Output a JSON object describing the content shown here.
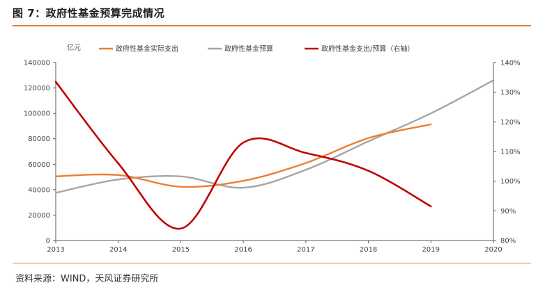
{
  "header": {
    "title": "图 7：政府性基金预算完成情况"
  },
  "footer": {
    "source": "资料来源：WIND，天风证券研究所"
  },
  "colors": {
    "accent": "#e07a30",
    "series_actual": "#ed7d31",
    "series_budget": "#a5a5a5",
    "series_ratio": "#c00000",
    "axis": "#595959"
  },
  "chart_data": {
    "type": "line",
    "unit_label": "亿元",
    "categories": [
      "2013",
      "2014",
      "2015",
      "2016",
      "2017",
      "2018",
      "2019",
      "2020"
    ],
    "y_left": {
      "min": 0,
      "max": 140000,
      "step": 20000,
      "ticks": [
        "0",
        "20000",
        "40000",
        "60000",
        "80000",
        "100000",
        "120000",
        "140000"
      ]
    },
    "y_right": {
      "min": 80,
      "max": 140,
      "step": 10,
      "ticks": [
        "80%",
        "90%",
        "100%",
        "110%",
        "120%",
        "130%",
        "140%"
      ]
    },
    "series": [
      {
        "name": "政府性基金实际支出",
        "axis": "left",
        "color": "#ed7d31",
        "values": [
          50500,
          51500,
          42300,
          46900,
          61000,
          80600,
          91400,
          null
        ]
      },
      {
        "name": "政府性基金预算",
        "axis": "left",
        "color": "#a5a5a5",
        "values": [
          37500,
          48000,
          50400,
          41500,
          55600,
          78000,
          100000,
          126000
        ]
      },
      {
        "name": "政府性基金支出/预算（右轴）",
        "axis": "right",
        "color": "#c00000",
        "values": [
          133.5,
          106.0,
          84.0,
          113.0,
          109.5,
          103.5,
          91.5,
          null
        ]
      }
    ]
  }
}
